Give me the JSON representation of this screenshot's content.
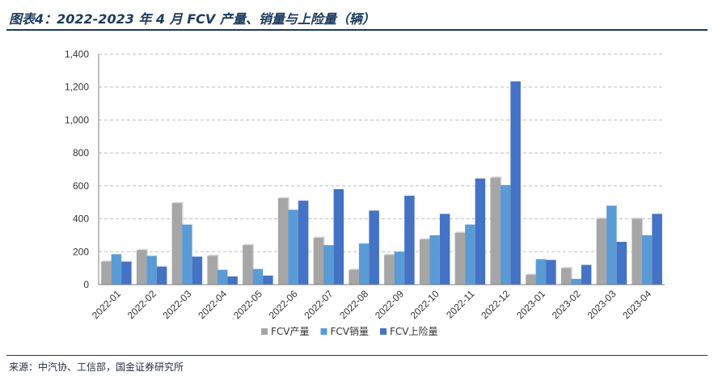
{
  "header": {
    "title": "图表4：2022-2023 年 4 月 FCV 产量、销量与上险量（辆）"
  },
  "footer": {
    "source": "来源：中汽协、工信部，国金证券研究所"
  },
  "colors": {
    "production": "#a6a6a6",
    "sales": "#5b9bd5",
    "insurance": "#4472c4",
    "grid": "#bfbfbf",
    "rule": "#1c3b5e"
  },
  "chart_data": {
    "type": "bar",
    "categories": [
      "2022-01",
      "2022-02",
      "2022-03",
      "2022-04",
      "2022-05",
      "2022-06",
      "2022-07",
      "2022-08",
      "2022-09",
      "2022-10",
      "2022-11",
      "2022-12",
      "2023-01",
      "2023-02",
      "2023-03",
      "2023-04"
    ],
    "series": [
      {
        "name": "FCV产量",
        "values": [
          140,
          210,
          495,
          175,
          240,
          525,
          285,
          90,
          180,
          275,
          315,
          650,
          60,
          100,
          400,
          400
        ]
      },
      {
        "name": "FCV销量",
        "values": [
          185,
          175,
          365,
          90,
          95,
          455,
          240,
          250,
          200,
          300,
          365,
          605,
          155,
          35,
          480,
          300
        ]
      },
      {
        "name": "FCV上险量",
        "values": [
          140,
          110,
          170,
          50,
          55,
          510,
          580,
          450,
          540,
          430,
          645,
          1235,
          150,
          120,
          260,
          430
        ]
      }
    ],
    "yticks": [
      "0",
      "200",
      "400",
      "600",
      "800",
      "1,000",
      "1,200",
      "1,400"
    ],
    "ylim": [
      0,
      1400
    ],
    "grid": true,
    "legend": "bottom"
  }
}
